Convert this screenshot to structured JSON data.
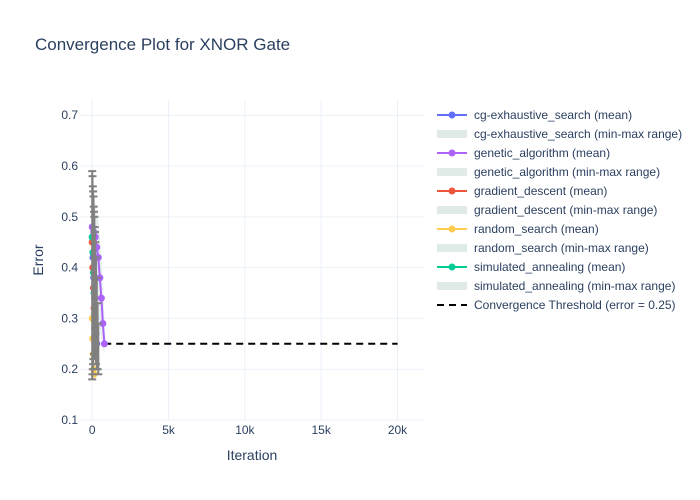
{
  "chart_data": {
    "type": "line",
    "title": "Convergence Plot for XNOR Gate",
    "xlabel": "Iteration",
    "ylabel": "Error",
    "xlim": [
      -800,
      21800
    ],
    "ylim": [
      0.1,
      0.73
    ],
    "x_ticks": [
      0,
      5000,
      10000,
      15000,
      20000
    ],
    "x_tick_labels": [
      "0",
      "5k",
      "10k",
      "15k",
      "20k"
    ],
    "y_ticks": [
      0.1,
      0.2,
      0.3,
      0.4,
      0.5,
      0.6,
      0.7
    ],
    "y_tick_labels": [
      "0.1",
      "0.2",
      "0.3",
      "0.4",
      "0.5",
      "0.6",
      "0.7"
    ],
    "grid": true,
    "legend_position": "right",
    "series": [
      {
        "name": "cg-exhaustive_search (mean)",
        "color": "#636efa",
        "x": [
          0,
          50,
          100,
          150,
          200,
          250,
          300
        ],
        "y": [
          0.46,
          0.42,
          0.38,
          0.34,
          0.3,
          0.27,
          0.25
        ],
        "range_name": "cg-exhaustive_search (min-max range)",
        "range_low": [
          0.3,
          0.28,
          0.26,
          0.24,
          0.22,
          0.21,
          0.2
        ],
        "range_high": [
          0.6,
          0.56,
          0.52,
          0.46,
          0.4,
          0.34,
          0.3
        ]
      },
      {
        "name": "genetic_algorithm (mean)",
        "color": "#ab63fa",
        "x": [
          0,
          100,
          200,
          300,
          400,
          500,
          600,
          700,
          800
        ],
        "y": [
          0.48,
          0.47,
          0.46,
          0.44,
          0.42,
          0.38,
          0.34,
          0.29,
          0.25
        ],
        "range_name": "genetic_algorithm (min-max range)",
        "range_low": [
          0.36,
          0.35,
          0.34,
          0.32,
          0.3,
          0.28,
          0.26,
          0.24,
          0.23
        ],
        "range_high": [
          0.56,
          0.55,
          0.53,
          0.51,
          0.49,
          0.46,
          0.42,
          0.36,
          0.3
        ]
      },
      {
        "name": "gradient_descent (mean)",
        "color": "#ef553b",
        "x": [
          0,
          40,
          80,
          120,
          160,
          200
        ],
        "y": [
          0.45,
          0.4,
          0.36,
          0.32,
          0.28,
          0.25
        ],
        "range_name": "gradient_descent (min-max range)",
        "range_low": [
          0.3,
          0.28,
          0.26,
          0.24,
          0.22,
          0.21
        ],
        "range_high": [
          0.58,
          0.52,
          0.46,
          0.4,
          0.34,
          0.29
        ]
      },
      {
        "name": "random_search (mean)",
        "color": "#fecb52",
        "x": [
          0,
          30,
          60,
          90,
          120
        ],
        "y": [
          0.3,
          0.26,
          0.23,
          0.2,
          0.19
        ],
        "range_name": "random_search (min-max range)",
        "range_low": [
          0.22,
          0.2,
          0.19,
          0.18,
          0.18
        ],
        "range_high": [
          0.4,
          0.34,
          0.29,
          0.25,
          0.22
        ]
      },
      {
        "name": "simulated_annealing (mean)",
        "color": "#00cc96",
        "x": [
          0,
          40,
          80,
          120,
          160,
          200
        ],
        "y": [
          0.46,
          0.43,
          0.39,
          0.35,
          0.31,
          0.27
        ],
        "range_name": "simulated_annealing (min-max range)",
        "range_low": [
          0.3,
          0.28,
          0.27,
          0.25,
          0.24,
          0.22
        ],
        "range_high": [
          0.62,
          0.56,
          0.5,
          0.44,
          0.38,
          0.32
        ]
      }
    ],
    "range_color": "#e0ebe7",
    "threshold": {
      "name": "Convergence Threshold (error = 0.25)",
      "y": 0.25,
      "x_range": [
        0,
        20000
      ],
      "color": "#000000",
      "dash": "dashed"
    },
    "error_bars": {
      "color": "#808080",
      "x": [
        0,
        20,
        40,
        60,
        80,
        100,
        120,
        140,
        160,
        180,
        200,
        250,
        300,
        350,
        400
      ],
      "y": [
        0.4,
        0.38,
        0.42,
        0.36,
        0.4,
        0.34,
        0.38,
        0.33,
        0.36,
        0.31,
        0.34,
        0.3,
        0.28,
        0.26,
        0.24
      ],
      "low": [
        0.18,
        0.19,
        0.2,
        0.21,
        0.22,
        0.22,
        0.23,
        0.23,
        0.23,
        0.22,
        0.22,
        0.21,
        0.2,
        0.2,
        0.19
      ],
      "high": [
        0.59,
        0.58,
        0.56,
        0.55,
        0.54,
        0.52,
        0.51,
        0.5,
        0.48,
        0.47,
        0.45,
        0.42,
        0.38,
        0.33,
        0.29
      ]
    }
  }
}
